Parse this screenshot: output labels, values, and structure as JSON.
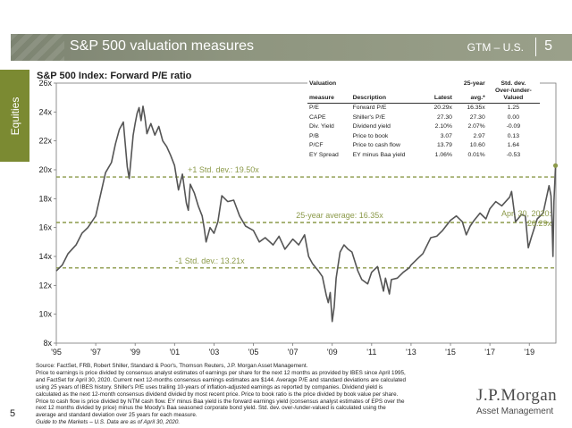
{
  "header": {
    "title": "S&P 500 valuation measures",
    "series": "GTM – U.S.",
    "page": "5"
  },
  "side_tab": "Equities",
  "page_number": "5",
  "colors": {
    "header_bg": "#8a917b",
    "side_tab": "#7b8a32",
    "line": "#555555",
    "reference_line": "#8c9a4a",
    "annotation": "#8c9a4a"
  },
  "table": {
    "headers": {
      "measure": [
        "Valuation",
        "measure"
      ],
      "description": "Description",
      "latest": "Latest",
      "avg": [
        "25-year",
        "avg.*"
      ],
      "stddev": [
        "Std. dev.",
        "Over-/under-",
        "Valued"
      ]
    },
    "rows": [
      {
        "measure": "P/E",
        "description": "Forward P/E",
        "latest": "20.29x",
        "avg": "16.35x",
        "stddev": "1.25"
      },
      {
        "measure": "CAPE",
        "description": "Shiller's P/E",
        "latest": "27.30",
        "avg": "27.30",
        "stddev": "0.00"
      },
      {
        "measure": "Div. Yield",
        "description": "Dividend yield",
        "latest": "2.10%",
        "avg": "2.07%",
        "stddev": "-0.09"
      },
      {
        "measure": "P/B",
        "description": "Price to book",
        "latest": "3.07",
        "avg": "2.97",
        "stddev": "0.13"
      },
      {
        "measure": "P/CF",
        "description": "Price to cash flow",
        "latest": "13.79",
        "avg": "10.60",
        "stddev": "1.64"
      },
      {
        "measure": "EY Spread",
        "description": "EY minus Baa yield",
        "latest": "1.06%",
        "avg": "0.01%",
        "stddev": "-0.53"
      }
    ]
  },
  "footnote": {
    "lines": [
      "Source: FactSet, FRB, Robert Shiller, Standard & Poor's, Thomson Reuters, J.P. Morgan Asset Management.",
      "Price to earnings is price divided by consensus analyst estimates of earnings per share for the next 12 months as provided by IBES since April 1995,",
      "and FactSet for April 30, 2020. Current next 12-months consensus earnings estimates are $144. Average P/E and standard deviations are calculated",
      "using 25 years of IBES history. Shiller's P/E uses trailing 10-years of inflation-adjusted earnings as reported by companies. Dividend yield is",
      "calculated as the next 12-month consensus dividend divided by most recent price. Price to book ratio is the price divided by book value per share.",
      "Price to cash flow is price divided by NTM cash flow. EY minus Baa yield is the forward earnings yield (consensus analyst estimates of EPS over the",
      "next 12 months divided by price) minus the Moody's Baa seasoned corporate bond yield. Std. dev. over-/under-valued is calculated using the",
      "average and standard deviation over 25 years for each measure."
    ],
    "guide": "Guide to the Markets – U.S. Data are as of April 30, 2020."
  },
  "logo": {
    "name": "J.P.Morgan",
    "sub": "Asset Management"
  },
  "chart_data": {
    "type": "line",
    "title": "S&P 500 Index: Forward P/E ratio",
    "ylim": [
      8,
      26
    ],
    "yticks": [
      "8x",
      "10x",
      "12x",
      "14x",
      "16x",
      "18x",
      "20x",
      "22x",
      "24x",
      "26x"
    ],
    "xlim": [
      1995.0,
      2020.35
    ],
    "xticks": [
      {
        "label": "'95",
        "x": 1995
      },
      {
        "label": "'97",
        "x": 1997
      },
      {
        "label": "'99",
        "x": 1999
      },
      {
        "label": "'01",
        "x": 2001
      },
      {
        "label": "'03",
        "x": 2003
      },
      {
        "label": "'05",
        "x": 2005
      },
      {
        "label": "'07",
        "x": 2007
      },
      {
        "label": "'09",
        "x": 2009
      },
      {
        "label": "'11",
        "x": 2011
      },
      {
        "label": "'13",
        "x": 2013
      },
      {
        "label": "'15",
        "x": 2015
      },
      {
        "label": "'17",
        "x": 2017
      },
      {
        "label": "'19",
        "x": 2019
      }
    ],
    "reference_lines": [
      {
        "label": "+1 Std. dev.: 19.50x",
        "y": 19.5
      },
      {
        "label": "25-year average: 16.35x",
        "y": 16.35
      },
      {
        "label": "-1 Std. dev.: 13.21x",
        "y": 13.21
      }
    ],
    "annotation": {
      "label": [
        "Apr. 30, 2020:",
        "20.29x"
      ],
      "x": 2020.33,
      "y": 20.29
    },
    "series": [
      {
        "x": [
          1995.0,
          1995.3,
          1995.6,
          1996.0,
          1996.3,
          1996.6,
          1997.0,
          1997.2,
          1997.5,
          1997.8,
          1998.0,
          1998.2,
          1998.4,
          1998.6,
          1998.7,
          1998.9,
          1999.0,
          1999.1,
          1999.2,
          1999.3,
          1999.4,
          1999.5,
          1999.6,
          1999.8,
          2000.0,
          2000.2,
          2000.4,
          2000.6,
          2000.8,
          2001.0,
          2001.2,
          2001.4,
          2001.6,
          2001.7,
          2001.8,
          2002.0,
          2002.2,
          2002.4,
          2002.5,
          2002.6,
          2002.8,
          2003.0,
          2003.2,
          2003.4,
          2003.7,
          2004.0,
          2004.3,
          2004.6,
          2005.0,
          2005.3,
          2005.6,
          2006.0,
          2006.3,
          2006.6,
          2007.0,
          2007.3,
          2007.6,
          2007.8,
          2008.0,
          2008.3,
          2008.5,
          2008.7,
          2008.8,
          2008.9,
          2009.0,
          2009.1,
          2009.2,
          2009.4,
          2009.6,
          2009.8,
          2010.0,
          2010.3,
          2010.5,
          2010.8,
          2011.0,
          2011.3,
          2011.6,
          2011.7,
          2011.9,
          2012.0,
          2012.3,
          2012.6,
          2012.9,
          2013.0,
          2013.3,
          2013.6,
          2014.0,
          2014.3,
          2014.6,
          2015.0,
          2015.3,
          2015.6,
          2015.8,
          2016.0,
          2016.2,
          2016.5,
          2016.8,
          2017.0,
          2017.3,
          2017.6,
          2018.0,
          2018.1,
          2018.3,
          2018.6,
          2018.8,
          2018.95,
          2019.1,
          2019.4,
          2019.7,
          2020.0,
          2020.1,
          2020.15,
          2020.2,
          2020.25,
          2020.33
        ],
        "values": [
          13.0,
          13.4,
          14.2,
          14.8,
          15.6,
          16.0,
          16.8,
          18.0,
          19.8,
          20.5,
          21.8,
          22.8,
          23.3,
          20.2,
          19.4,
          22.4,
          23.2,
          23.9,
          24.3,
          23.4,
          24.4,
          23.6,
          22.5,
          23.2,
          22.4,
          23.0,
          22.0,
          21.6,
          21.0,
          20.3,
          18.6,
          19.7,
          17.7,
          17.2,
          19.0,
          18.4,
          17.5,
          16.8,
          16.0,
          15.0,
          16.0,
          15.6,
          16.4,
          18.2,
          17.8,
          17.9,
          16.8,
          16.1,
          15.8,
          15.0,
          15.3,
          14.8,
          15.4,
          14.5,
          15.2,
          14.8,
          15.5,
          14.0,
          13.5,
          13.0,
          12.6,
          11.3,
          10.8,
          11.5,
          9.5,
          10.5,
          12.5,
          14.3,
          14.8,
          14.5,
          14.3,
          13.0,
          12.4,
          12.1,
          12.9,
          13.3,
          11.6,
          12.5,
          11.4,
          12.4,
          12.5,
          12.9,
          13.2,
          13.4,
          13.8,
          14.2,
          15.3,
          15.4,
          15.8,
          16.5,
          16.8,
          16.4,
          15.5,
          16.1,
          16.5,
          17.0,
          16.6,
          17.3,
          17.8,
          17.5,
          18.1,
          18.5,
          16.4,
          16.9,
          16.8,
          14.6,
          15.3,
          16.6,
          17.0,
          18.9,
          18.2,
          16.5,
          14.0,
          17.8,
          20.29
        ]
      }
    ]
  }
}
